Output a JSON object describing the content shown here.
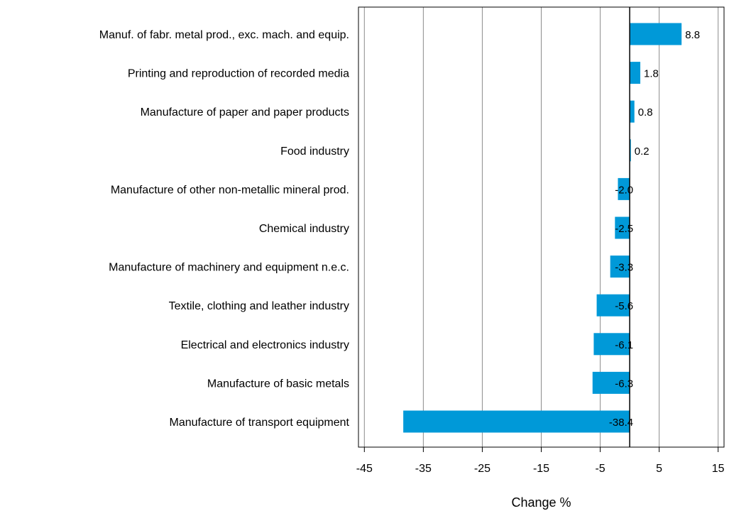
{
  "chart_data": {
    "type": "bar",
    "orientation": "horizontal",
    "categories": [
      "Manuf. of fabr. metal prod., exc. mach. and equip.",
      "Printing and reproduction of recorded media",
      "Manufacture of paper and paper products",
      "Food industry",
      "Manufacture of other non-metallic mineral prod.",
      "Chemical industry",
      "Manufacture of machinery and equipment n.e.c.",
      "Textile, clothing and leather industry",
      "Electrical and electronics industry",
      "Manufacture of basic metals",
      "Manufacture of transport equipment"
    ],
    "values": [
      8.8,
      1.8,
      0.8,
      0.2,
      -2.0,
      -2.5,
      -3.3,
      -5.6,
      -6.1,
      -6.3,
      -38.4
    ],
    "data_labels": [
      "8.8",
      "1.8",
      "0.8",
      "0.2",
      "-2.0",
      "-2.5",
      "-3.3",
      "-5.6",
      "-6.1",
      "-6.3",
      "-38.4"
    ],
    "xlabel": "Change %",
    "ylabel": "",
    "title": "",
    "xlim": [
      -46,
      16
    ],
    "xticks": [
      -45,
      -35,
      -25,
      -15,
      -5,
      5,
      15
    ],
    "xtick_labels": [
      "-45",
      "-35",
      "-25",
      "-15",
      "-5",
      "5",
      "15"
    ],
    "grid": "vertical",
    "bar_color": "#0099d8",
    "grid_color": "#8c8c8c",
    "axis_color": "#000000"
  }
}
